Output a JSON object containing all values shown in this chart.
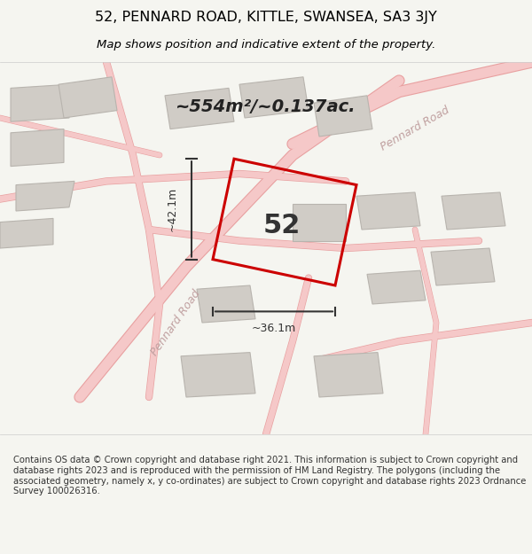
{
  "title": "52, PENNARD ROAD, KITTLE, SWANSEA, SA3 3JY",
  "subtitle": "Map shows position and indicative extent of the property.",
  "area_text": "~554m²/~0.137ac.",
  "property_number": "52",
  "dim_width": "~36.1m",
  "dim_height": "~42.1m",
  "footer": "Contains OS data © Crown copyright and database right 2021. This information is subject to Crown copyright and database rights 2023 and is reproduced with the permission of HM Land Registry. The polygons (including the associated geometry, namely x, y co-ordinates) are subject to Crown copyright and database rights 2023 Ordnance Survey 100026316.",
  "bg_color": "#f0ede8",
  "map_bg": "#e8e4de",
  "road_color": "#f5c8c8",
  "road_stroke": "#e8a0a0",
  "building_fill": "#d0ccc6",
  "building_stroke": "#b8b4ae",
  "property_stroke": "#cc0000",
  "property_fill": "none",
  "dim_color": "#333333",
  "title_color": "#000000",
  "footer_color": "#333333"
}
